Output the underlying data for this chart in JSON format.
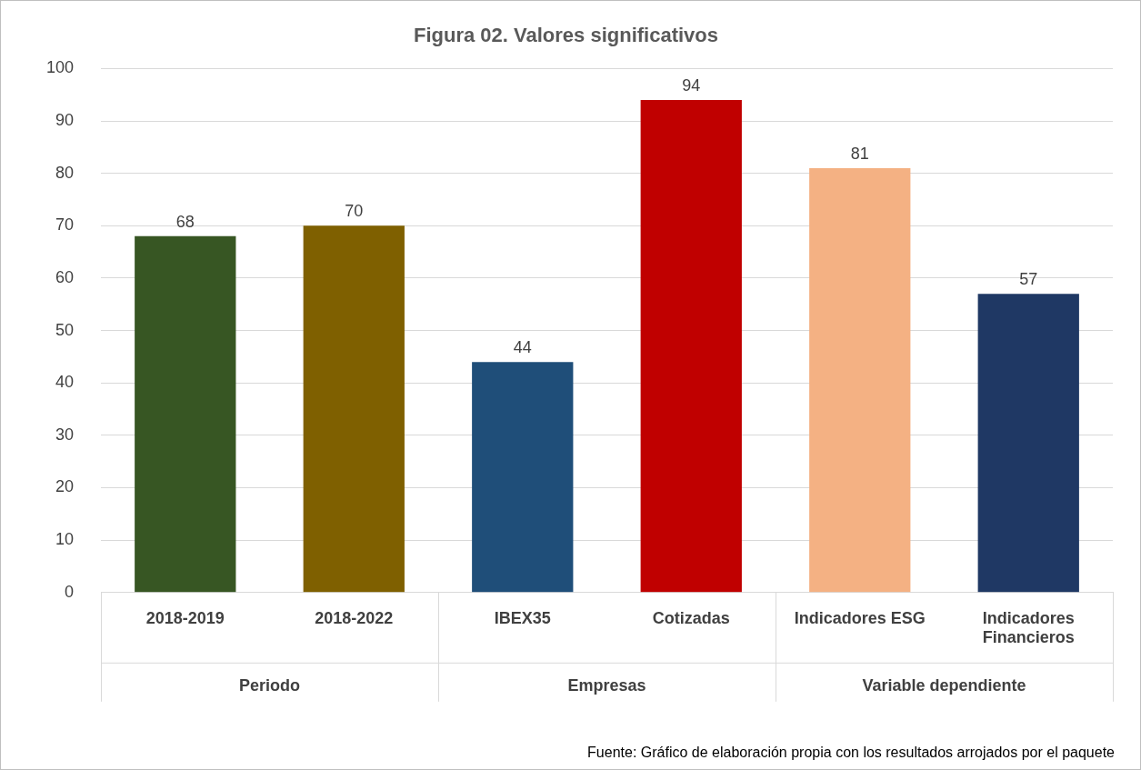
{
  "chart_data": {
    "type": "bar",
    "title": "Figura 02. Valores significativos",
    "categories": [
      "2018-2019",
      "2018-2022",
      "IBEX35",
      "Cotizadas",
      "Indicadores ESG",
      "Indicadores Financieros"
    ],
    "values": [
      68,
      70,
      44,
      94,
      81,
      57
    ],
    "colors": [
      "#375623",
      "#7f6000",
      "#1f4e79",
      "#c00000",
      "#f4b183",
      "#1f3864"
    ],
    "ylim": [
      0,
      100
    ],
    "yticks": [
      0,
      10,
      20,
      30,
      40,
      50,
      60,
      70,
      80,
      90,
      100
    ],
    "grid": "y",
    "data_labels": true,
    "legend": false,
    "annotations": [
      "Periodo",
      "Empresas",
      "Variable dependiente",
      "Fuente: Gráfico de elaboración propia con los resultados arrojados por el paquete"
    ]
  }
}
